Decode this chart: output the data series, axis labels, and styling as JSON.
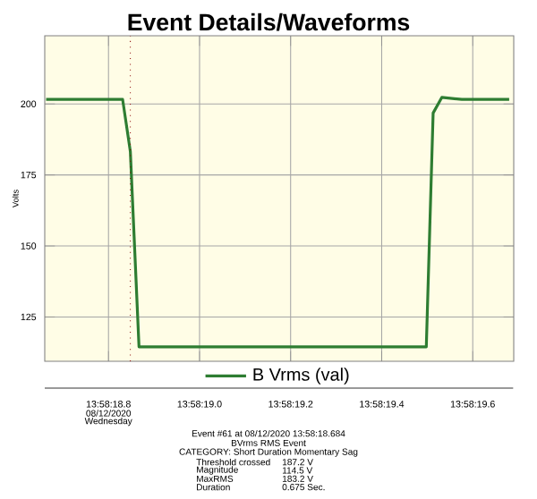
{
  "chart_data": {
    "type": "line",
    "title": "Event Details/Waveforms",
    "ylabel": "Volts",
    "x": [
      "2020-08-12T13:58:18.663",
      "2020-08-12T13:58:18.831",
      "2020-08-12T13:58:18.848",
      "2020-08-12T13:58:18.867",
      "2020-08-12T13:58:19.498",
      "2020-08-12T13:58:19.513",
      "2020-08-12T13:58:19.532",
      "2020-08-12T13:58:19.576",
      "2020-08-12T13:58:19.680"
    ],
    "series": [
      {
        "name": "B Vrms (val)",
        "color": "#2e7d32",
        "values": [
          201.6,
          201.6,
          183.2,
          114.5,
          114.5,
          196.8,
          202.3,
          201.6,
          201.6
        ]
      }
    ],
    "xlim": [
      "2020-08-12T13:58:18.660",
      "2020-08-12T13:58:19.690"
    ],
    "ylim": [
      109.4,
      224
    ],
    "xticks": [
      {
        "value": "2020-08-12T13:58:18.8",
        "label": "13:58:18.8"
      },
      {
        "value": "2020-08-12T13:58:19.0",
        "label": "13:58:19.0"
      },
      {
        "value": "2020-08-12T13:58:19.2",
        "label": "13:58:19.2"
      },
      {
        "value": "2020-08-12T13:58:19.4",
        "label": "13:58:19.4"
      },
      {
        "value": "2020-08-12T13:58:19.6",
        "label": "13:58:19.6"
      }
    ],
    "yticks": [
      125,
      150,
      175,
      200
    ],
    "grid": true,
    "legend": "bottom",
    "marker": "none",
    "line_style": "solid",
    "ref_lines": [
      {
        "axis": "x",
        "value": "2020-08-12T13:58:18.848",
        "color": "#8b0000",
        "line_style": "dotted"
      }
    ],
    "annotations": [
      "08/12/2020",
      "Wednesday",
      "Event #61 at 08/12/2020 13:58:18.684",
      "BVrms RMS Event",
      "CATEGORY: Short Duration Momentary Sag",
      "Threshold crossed",
      "187.2 V",
      "Magnitude",
      "114.5 V",
      "MaxRMS",
      "183.2 V",
      "Duration",
      "0.675 Sec."
    ]
  }
}
